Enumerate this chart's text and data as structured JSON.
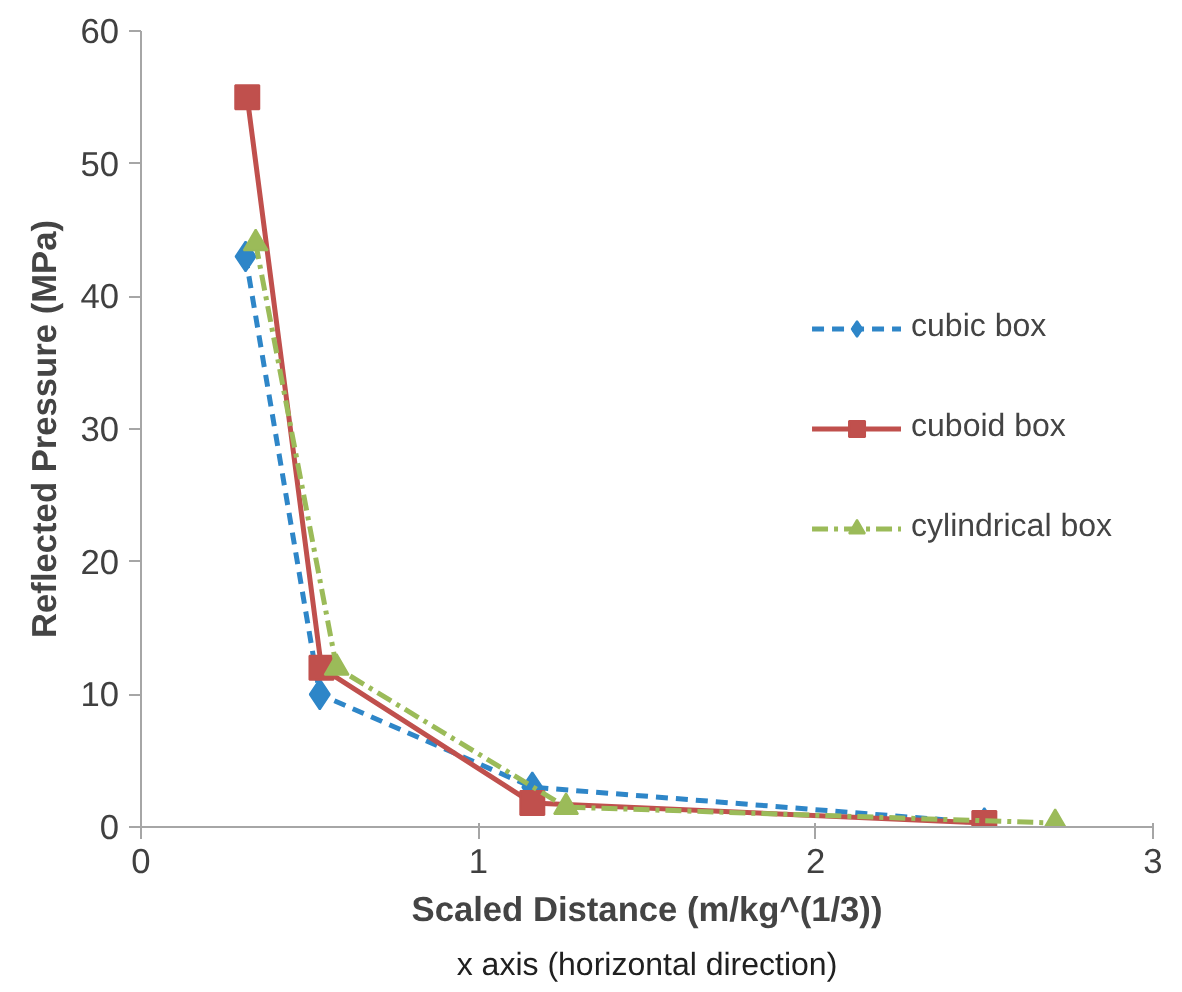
{
  "chart_data": {
    "type": "line",
    "xlabel": "Scaled Distance (m/kg^(1/3))",
    "ylabel": "Reflected Pressure (MPa)",
    "xlim": [
      0,
      3
    ],
    "xticks": [
      0,
      1,
      2,
      3
    ],
    "ylim": [
      0,
      60
    ],
    "yticks": [
      0,
      10,
      20,
      30,
      40,
      50,
      60
    ],
    "grid": false,
    "legend": "right",
    "series": [
      {
        "name": "cubic box",
        "color": "#2e86c8",
        "marker": "diamond",
        "line_style": "dashed",
        "x": [
          0.31,
          0.53,
          1.16,
          2.5
        ],
        "values": [
          43,
          10,
          3,
          0.3
        ]
      },
      {
        "name": "cuboid box",
        "color": "#c0504d",
        "marker": "square",
        "line_style": "solid",
        "x": [
          0.315,
          0.535,
          1.16,
          2.5
        ],
        "values": [
          55,
          12,
          1.8,
          0.3
        ]
      },
      {
        "name": "cylindrical box",
        "color": "#9bbb59",
        "marker": "triangle",
        "line_style": "dashdot",
        "x": [
          0.34,
          0.58,
          1.26,
          2.71
        ],
        "values": [
          44,
          12,
          1.5,
          0.3
        ]
      }
    ],
    "annotations": [
      "x axis (horizontal direction)"
    ]
  }
}
